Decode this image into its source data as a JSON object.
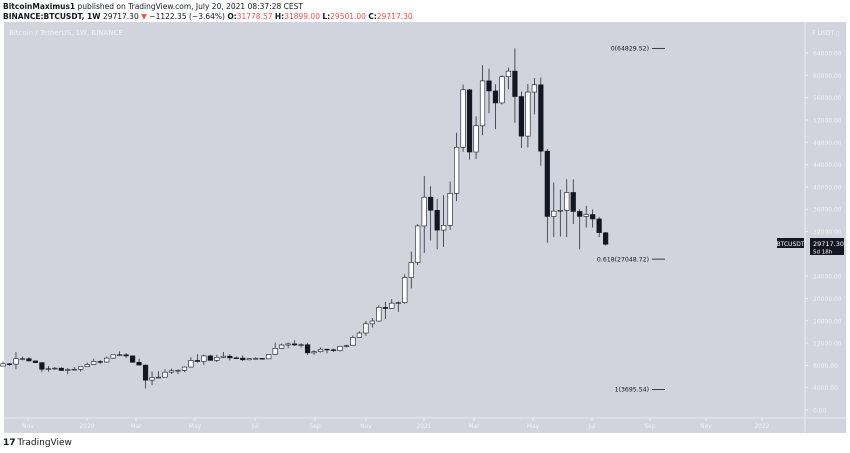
{
  "header": {
    "author": "BitcoinMaximus1",
    "published": "published on TradingView.com, July 20, 2021 08:37:28 CEST",
    "symbol": "BINANCE:BTCUSDT, 1W",
    "last": "29717.30",
    "down_arrow": "▼",
    "change": "−1122.35 (−3.64%)",
    "o_label": "O:",
    "o": "31778.57",
    "h_label": "H:",
    "h": "31899.00",
    "l_label": "L:",
    "l": "29501.00",
    "c_label": "C:",
    "c": "29717.30"
  },
  "pane_title": "Bitcoin / TetherUS, 1W, BINANCE",
  "price_axis": {
    "unit": "₮ USDT ▯",
    "ticks": [
      "64000.00",
      "60000.00",
      "56000.00",
      "52000.00",
      "48000.00",
      "44000.00",
      "40000.00",
      "36000.00",
      "32000.00",
      "24000.00",
      "20000.00",
      "16000.00",
      "12000.00",
      "8000.00",
      "4000.00",
      "0.00"
    ],
    "tick_values": [
      64000,
      60000,
      56000,
      52000,
      48000,
      44000,
      40000,
      36000,
      32000,
      24000,
      20000,
      16000,
      12000,
      8000,
      4000,
      0
    ],
    "last_symbol": "BTCUSDT",
    "last_price": "29717.30",
    "countdown": "5d 18h"
  },
  "time_axis": {
    "ticks": [
      "Nov",
      "2020",
      "Mar",
      "May",
      "Jul",
      "Sep",
      "Nov",
      "2021",
      "Mar",
      "May",
      "Jul",
      "Sep",
      "Nov",
      "2022"
    ]
  },
  "fib_levels": [
    {
      "label": "0(64829.52)",
      "price": 64829.52
    },
    {
      "label": "0.618(27048.72)",
      "price": 27048.72
    },
    {
      "label": "1(3695.54)",
      "price": 3695.54
    }
  ],
  "colors": {
    "up": "#ffffff",
    "down": "#131722",
    "background": "#d1d4dc",
    "wick": "#131722",
    "red": "#ef5350"
  },
  "footer": {
    "logo_mark": "17",
    "logo_text": "TradingView"
  },
  "chart_data": {
    "type": "candlestick",
    "interval": "1W",
    "ylim": [
      0,
      66000
    ],
    "ohlc": [
      [
        7870,
        8700,
        7800,
        8280
      ],
      [
        8280,
        8420,
        7900,
        8220
      ],
      [
        8220,
        10370,
        7300,
        9200
      ],
      [
        9200,
        9580,
        8900,
        9200
      ],
      [
        9200,
        9450,
        8700,
        8800
      ],
      [
        8800,
        8870,
        8400,
        8500
      ],
      [
        8500,
        8520,
        6800,
        7300
      ],
      [
        7300,
        7880,
        6850,
        7400
      ],
      [
        7400,
        7700,
        7200,
        7500
      ],
      [
        7500,
        7650,
        7000,
        7080
      ],
      [
        7080,
        7520,
        6430,
        7250
      ],
      [
        7250,
        7700,
        7150,
        7300
      ],
      [
        7300,
        7550,
        6870,
        7750
      ],
      [
        7750,
        8480,
        7700,
        8180
      ],
      [
        8180,
        9200,
        8100,
        8700
      ],
      [
        8700,
        8950,
        8250,
        8600
      ],
      [
        8600,
        9560,
        8500,
        9300
      ],
      [
        9300,
        9900,
        9150,
        9900
      ],
      [
        9900,
        10500,
        9700,
        9900
      ],
      [
        9900,
        10200,
        9300,
        9700
      ],
      [
        9700,
        9700,
        8500,
        8550
      ],
      [
        8550,
        9200,
        8000,
        8050
      ],
      [
        8050,
        8150,
        3850,
        5350
      ],
      [
        5350,
        6900,
        4450,
        5830
      ],
      [
        5830,
        6950,
        5700,
        5880
      ],
      [
        5880,
        7300,
        5860,
        6780
      ],
      [
        6780,
        7450,
        6500,
        7030
      ],
      [
        7030,
        7300,
        6450,
        7120
      ],
      [
        7120,
        7770,
        6800,
        7700
      ],
      [
        7700,
        9450,
        7630,
        8880
      ],
      [
        8880,
        10000,
        8500,
        8700
      ],
      [
        8700,
        9950,
        8100,
        9700
      ],
      [
        9700,
        9900,
        8800,
        8900
      ],
      [
        8900,
        9900,
        8600,
        9450
      ],
      [
        9450,
        10400,
        9300,
        9650
      ],
      [
        9650,
        9990,
        8900,
        9350
      ],
      [
        9350,
        9600,
        9200,
        9300
      ],
      [
        9300,
        9800,
        8800,
        9000
      ],
      [
        9000,
        9300,
        8900,
        9200
      ],
      [
        9200,
        9450,
        9050,
        9250
      ],
      [
        9250,
        9300,
        9050,
        9170
      ],
      [
        9170,
        10000,
        9150,
        9950
      ],
      [
        9950,
        12100,
        9900,
        11050
      ],
      [
        11050,
        11900,
        11000,
        11650
      ],
      [
        11650,
        12100,
        11100,
        11850
      ],
      [
        11850,
        12500,
        11500,
        11650
      ],
      [
        11650,
        12000,
        11200,
        11700
      ],
      [
        11700,
        12050,
        9850,
        10250
      ],
      [
        10250,
        10700,
        9900,
        10450
      ],
      [
        10450,
        11200,
        10300,
        10900
      ],
      [
        10900,
        10980,
        10150,
        10800
      ],
      [
        10800,
        11000,
        10400,
        10650
      ],
      [
        10650,
        11500,
        10500,
        11400
      ],
      [
        11400,
        11700,
        11200,
        11550
      ],
      [
        11550,
        13350,
        11500,
        13000
      ],
      [
        13000,
        14100,
        12900,
        13800
      ],
      [
        13800,
        15950,
        13300,
        15450
      ],
      [
        15450,
        16500,
        14800,
        15950
      ],
      [
        15950,
        18800,
        15900,
        18400
      ],
      [
        18400,
        19400,
        16300,
        18200
      ],
      [
        18200,
        19900,
        18100,
        19150
      ],
      [
        19150,
        19450,
        17600,
        19250
      ],
      [
        19250,
        24300,
        19000,
        23750
      ],
      [
        23750,
        28400,
        21800,
        26450
      ],
      [
        26450,
        33300,
        26000,
        33000
      ],
      [
        33000,
        41950,
        28150,
        38150
      ],
      [
        38150,
        40100,
        30400,
        35800
      ],
      [
        35800,
        37850,
        28800,
        32250
      ],
      [
        32250,
        38500,
        29250,
        33100
      ],
      [
        33100,
        40950,
        32300,
        38850
      ],
      [
        38850,
        49700,
        37450,
        47100
      ],
      [
        47100,
        58350,
        46300,
        57400
      ],
      [
        57400,
        57550,
        44900,
        46250
      ],
      [
        46250,
        52650,
        45000,
        50950
      ],
      [
        50950,
        61800,
        49250,
        59000
      ],
      [
        59000,
        61200,
        53200,
        57200
      ],
      [
        57200,
        58400,
        50350,
        55050
      ],
      [
        55050,
        60000,
        54800,
        59750
      ],
      [
        59750,
        61400,
        57500,
        60750
      ],
      [
        60750,
        64850,
        51500,
        56200
      ],
      [
        56200,
        57100,
        47000,
        49100
      ],
      [
        49100,
        58450,
        47050,
        57000
      ],
      [
        57000,
        59500,
        53000,
        58300
      ],
      [
        58300,
        59600,
        43800,
        46400
      ],
      [
        46400,
        46800,
        30000,
        34700
      ],
      [
        34700,
        40800,
        31000,
        35650
      ],
      [
        35650,
        39500,
        31100,
        35800
      ],
      [
        35800,
        41350,
        31000,
        39000
      ],
      [
        39000,
        41350,
        33350,
        35600
      ],
      [
        35600,
        36000,
        28800,
        34700
      ],
      [
        34700,
        36600,
        32700,
        35050
      ],
      [
        35050,
        35950,
        32700,
        34250
      ],
      [
        34250,
        34600,
        31000,
        31800
      ],
      [
        31778.57,
        31899,
        29501,
        29717.3
      ]
    ]
  }
}
